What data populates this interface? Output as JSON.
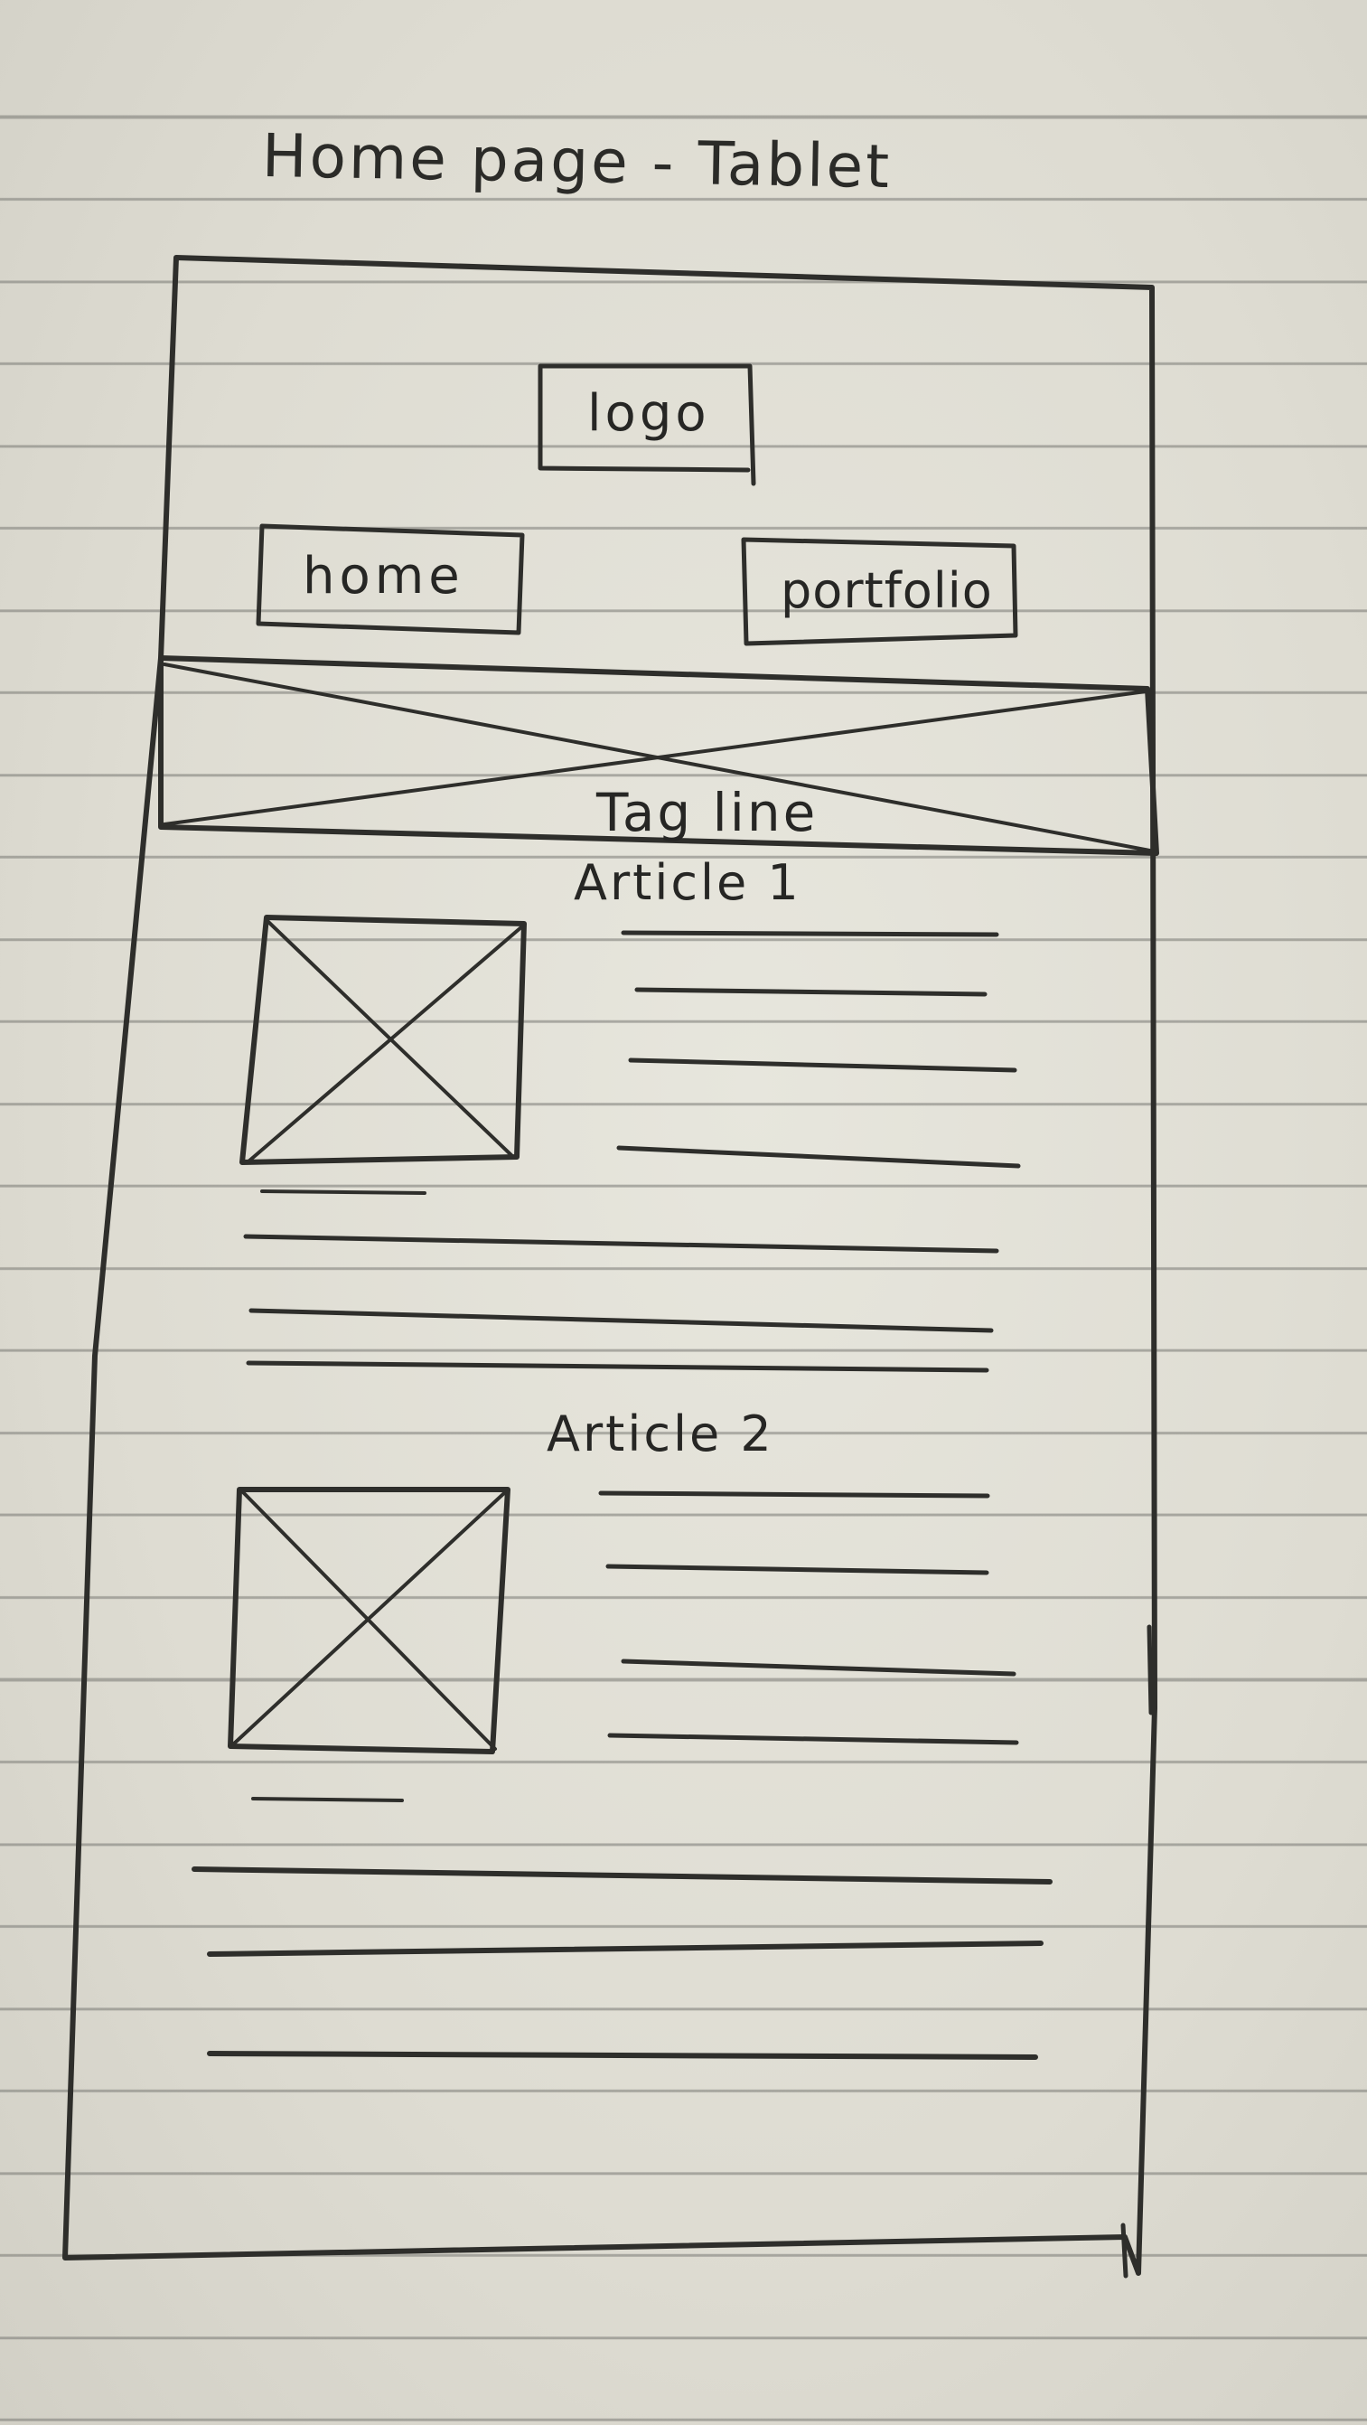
{
  "title": "Home page - Tablet",
  "header": {
    "logo_label": "logo",
    "nav": {
      "home_label": "home",
      "portfolio_label": "portfolio"
    }
  },
  "hero": {
    "tagline": "Tag line"
  },
  "articles": [
    {
      "title": "Article 1"
    },
    {
      "title": "Article 2"
    }
  ],
  "colors": {
    "ink": "#2f2f2c",
    "paper": "#deddd4",
    "ruling": "#7a7a73"
  }
}
